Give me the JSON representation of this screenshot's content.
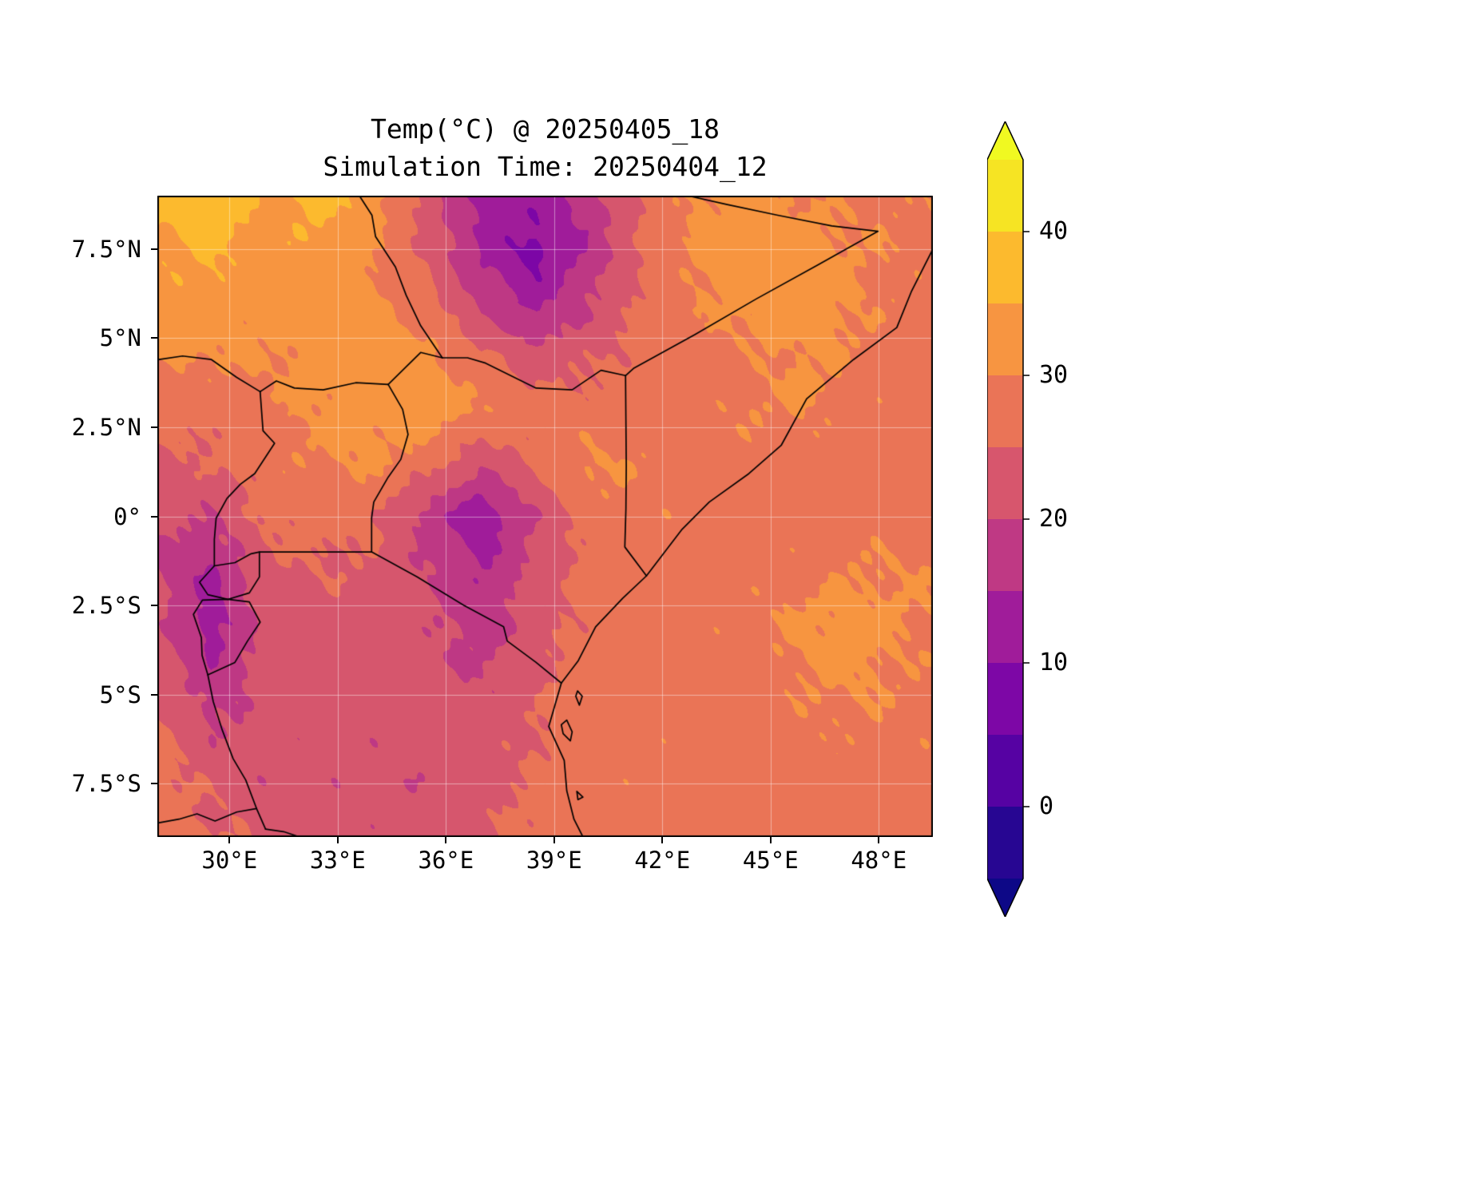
{
  "title": {
    "line1": "Temp(°C) @ 20250405_18",
    "line2": "Simulation Time: 20250404_12"
  },
  "axes": {
    "lon_ticks": [
      {
        "value": 30,
        "label": "30°E"
      },
      {
        "value": 33,
        "label": "33°E"
      },
      {
        "value": 36,
        "label": "36°E"
      },
      {
        "value": 39,
        "label": "39°E"
      },
      {
        "value": 42,
        "label": "42°E"
      },
      {
        "value": 45,
        "label": "45°E"
      },
      {
        "value": 48,
        "label": "48°E"
      }
    ],
    "lat_ticks": [
      {
        "value": 7.5,
        "label": "7.5°N"
      },
      {
        "value": 5,
        "label": "5°N"
      },
      {
        "value": 2.5,
        "label": "2.5°N"
      },
      {
        "value": 0,
        "label": "0°"
      },
      {
        "value": -2.5,
        "label": "2.5°S"
      },
      {
        "value": -5,
        "label": "5°S"
      },
      {
        "value": -7.5,
        "label": "7.5°S"
      }
    ]
  },
  "colorbar": {
    "ticks": [
      {
        "value": 40,
        "label": "40"
      },
      {
        "value": 30,
        "label": "30"
      },
      {
        "value": 20,
        "label": "20"
      },
      {
        "value": 10,
        "label": "10"
      },
      {
        "value": 0,
        "label": "0"
      }
    ],
    "vmin": -5,
    "vmax": 45,
    "band_step": 5,
    "colormap": "plasma",
    "extend": "both",
    "stops": [
      "#0d0887",
      "#41049d",
      "#6a00a8",
      "#8f0da4",
      "#b12a90",
      "#cc4778",
      "#e16462",
      "#f2844b",
      "#fca636",
      "#fcce25",
      "#f0f921"
    ]
  },
  "chart_data": {
    "type": "heatmap",
    "title": "Temp(°C) @ 20250405_18",
    "subtitle": "Simulation Time: 20250404_12",
    "variable": "Temperature",
    "units": "°C",
    "valid_time": "20250405_18",
    "simulation_time": "20250404_12",
    "colormap": "plasma",
    "levels_min": -5,
    "levels_max": 45,
    "level_step": 5,
    "extend": "both",
    "lon_range": [
      28.0,
      49.5
    ],
    "lat_range": [
      -9.0,
      9.0
    ],
    "grid_lon": [
      28.0,
      29.5,
      31.0,
      32.5,
      34.0,
      35.5,
      37.0,
      38.5,
      40.0,
      41.5,
      43.0,
      44.5,
      46.0,
      47.5,
      49.0
    ],
    "grid_lat": [
      9.0,
      7.5,
      6.0,
      4.5,
      3.0,
      1.5,
      0.0,
      -1.5,
      -3.0,
      -4.5,
      -6.0,
      -7.5,
      -9.0
    ],
    "temperature_c": [
      [
        36,
        38,
        34,
        37,
        33,
        22,
        14,
        12,
        18,
        26,
        31,
        32,
        30,
        29,
        29
      ],
      [
        34,
        36,
        33,
        34,
        30,
        24,
        14,
        8,
        16,
        26,
        31,
        33,
        32,
        30,
        29
      ],
      [
        33,
        34,
        32,
        33,
        31,
        27,
        18,
        13,
        20,
        26,
        30,
        32,
        33,
        30,
        28
      ],
      [
        30,
        31,
        30,
        32,
        33,
        31,
        26,
        22,
        24,
        27,
        28,
        29,
        31,
        29,
        28
      ],
      [
        26,
        27,
        29,
        31,
        32,
        33,
        30,
        27,
        27,
        28,
        28,
        30,
        30,
        29,
        28
      ],
      [
        24,
        25,
        28,
        30,
        31,
        27,
        21,
        26,
        31,
        29,
        28,
        28,
        28,
        28,
        28
      ],
      [
        22,
        20,
        26,
        27,
        26,
        18,
        11,
        20,
        28,
        29,
        28,
        28,
        28,
        28,
        28
      ],
      [
        20,
        14,
        24,
        25,
        24,
        20,
        15,
        22,
        27,
        28,
        28,
        28,
        29,
        30,
        30
      ],
      [
        22,
        12,
        22,
        23,
        23,
        21,
        17,
        23,
        27,
        28,
        28,
        29,
        31,
        32,
        30
      ],
      [
        24,
        16,
        22,
        22,
        22,
        22,
        20,
        24,
        28,
        28,
        28,
        28,
        30,
        31,
        29
      ],
      [
        26,
        20,
        22,
        22,
        22,
        22,
        22,
        25,
        28,
        28,
        28,
        28,
        29,
        29,
        29
      ],
      [
        27,
        24,
        21,
        22,
        21,
        21,
        23,
        26,
        28,
        28,
        28,
        28,
        28,
        28,
        28
      ],
      [
        27,
        26,
        24,
        23,
        22,
        22,
        24,
        27,
        28,
        28,
        28,
        28,
        28,
        28,
        28
      ]
    ],
    "borders": {
      "coastline": [
        [
          49.5,
          7.5
        ],
        [
          48.9,
          6.3
        ],
        [
          48.5,
          5.3
        ],
        [
          47.3,
          4.4
        ],
        [
          46.0,
          3.3
        ],
        [
          45.3,
          2.0
        ],
        [
          44.4,
          1.2
        ],
        [
          43.3,
          0.4
        ],
        [
          42.55,
          -0.36
        ],
        [
          41.56,
          -1.67
        ],
        [
          40.9,
          -2.3
        ],
        [
          40.15,
          -3.1
        ],
        [
          39.67,
          -4.05
        ],
        [
          39.2,
          -4.68
        ],
        [
          39.08,
          -5.1
        ],
        [
          38.85,
          -5.9
        ],
        [
          39.28,
          -6.85
        ],
        [
          39.35,
          -7.7
        ],
        [
          39.55,
          -8.5
        ],
        [
          39.8,
          -9.0
        ]
      ],
      "ethiopia_somalia_border": [
        [
          42.7,
          9.0
        ],
        [
          43.8,
          8.75
        ],
        [
          45.2,
          8.45
        ],
        [
          46.7,
          8.15
        ],
        [
          47.98,
          8.0
        ],
        [
          46.3,
          7.05
        ],
        [
          44.6,
          6.1
        ],
        [
          42.9,
          5.1
        ],
        [
          41.2,
          4.15
        ],
        [
          40.98,
          3.95
        ]
      ],
      "kenya_somalia_border": [
        [
          40.98,
          3.95
        ],
        [
          40.99,
          2.7
        ],
        [
          41.0,
          1.4
        ],
        [
          40.99,
          0.2
        ],
        [
          40.96,
          -0.86
        ],
        [
          41.56,
          -1.67
        ]
      ],
      "ethiopia_kenya_border": [
        [
          40.98,
          3.95
        ],
        [
          40.3,
          4.1
        ],
        [
          39.5,
          3.55
        ],
        [
          38.5,
          3.6
        ],
        [
          37.1,
          4.3
        ],
        [
          36.6,
          4.45
        ],
        [
          35.9,
          4.45
        ]
      ],
      "ethiopia_southsudan_border": [
        [
          35.9,
          4.45
        ],
        [
          35.3,
          5.35
        ],
        [
          34.9,
          6.2
        ],
        [
          34.6,
          7.0
        ],
        [
          34.05,
          7.85
        ],
        [
          33.95,
          8.45
        ],
        [
          33.6,
          9.0
        ]
      ],
      "kenya_southsudan_border": [
        [
          35.9,
          4.45
        ],
        [
          35.3,
          4.6
        ],
        [
          34.9,
          4.2
        ],
        [
          34.4,
          3.7
        ]
      ],
      "southsudan_uganda_border": [
        [
          34.4,
          3.7
        ],
        [
          33.5,
          3.75
        ],
        [
          32.6,
          3.55
        ],
        [
          31.8,
          3.6
        ],
        [
          31.3,
          3.8
        ],
        [
          30.85,
          3.5
        ]
      ],
      "southsudan_drc_border": [
        [
          30.85,
          3.5
        ],
        [
          30.2,
          3.9
        ],
        [
          29.5,
          4.4
        ],
        [
          28.7,
          4.5
        ],
        [
          28.05,
          4.4
        ]
      ],
      "uganda_kenya_border": [
        [
          34.4,
          3.7
        ],
        [
          34.8,
          3.0
        ],
        [
          34.95,
          2.3
        ],
        [
          34.75,
          1.6
        ],
        [
          34.4,
          1.1
        ],
        [
          34.0,
          0.4
        ],
        [
          33.94,
          -0.05
        ],
        [
          33.94,
          -1.0
        ]
      ],
      "uganda_drc_border": [
        [
          30.85,
          3.5
        ],
        [
          30.93,
          2.4
        ],
        [
          31.25,
          2.05
        ],
        [
          30.7,
          1.2
        ],
        [
          30.3,
          0.9
        ],
        [
          29.93,
          0.5
        ],
        [
          29.63,
          -0.05
        ],
        [
          29.58,
          -0.65
        ],
        [
          29.58,
          -1.39
        ]
      ],
      "uganda_tanzania_border": [
        [
          30.83,
          -1.0
        ],
        [
          31.6,
          -1.0
        ],
        [
          32.4,
          -1.0
        ],
        [
          33.2,
          -1.0
        ],
        [
          33.94,
          -1.0
        ]
      ],
      "kenya_tanzania_border": [
        [
          33.94,
          -1.0
        ],
        [
          35.2,
          -1.7
        ],
        [
          36.5,
          -2.5
        ],
        [
          37.6,
          -3.1
        ],
        [
          37.7,
          -3.5
        ],
        [
          38.5,
          -4.1
        ],
        [
          39.2,
          -4.68
        ]
      ],
      "rwanda_border": [
        [
          29.58,
          -1.39
        ],
        [
          30.15,
          -1.3
        ],
        [
          30.6,
          -1.05
        ],
        [
          30.83,
          -1.0
        ],
        [
          30.83,
          -1.7
        ],
        [
          30.55,
          -2.15
        ],
        [
          29.95,
          -2.33
        ],
        [
          29.4,
          -2.2
        ],
        [
          29.17,
          -1.85
        ],
        [
          29.58,
          -1.39
        ]
      ],
      "burundi_border": [
        [
          29.25,
          -2.35
        ],
        [
          29.95,
          -2.33
        ],
        [
          30.55,
          -2.4
        ],
        [
          30.85,
          -2.97
        ],
        [
          30.5,
          -3.5
        ],
        [
          30.15,
          -4.1
        ],
        [
          29.4,
          -4.45
        ],
        [
          29.24,
          -3.9
        ],
        [
          29.22,
          -3.4
        ],
        [
          29.0,
          -2.75
        ],
        [
          29.25,
          -2.35
        ]
      ],
      "drc_tanzania_border": [
        [
          29.4,
          -4.45
        ],
        [
          29.55,
          -5.2
        ],
        [
          29.8,
          -6.0
        ],
        [
          30.1,
          -6.8
        ],
        [
          30.45,
          -7.4
        ],
        [
          30.75,
          -8.2
        ],
        [
          31.0,
          -8.78
        ]
      ],
      "tanzania_zambia_border": [
        [
          31.0,
          -8.78
        ],
        [
          31.5,
          -8.85
        ],
        [
          31.95,
          -9.0
        ]
      ],
      "drc_zambia_border": [
        [
          28.05,
          -8.6
        ],
        [
          28.6,
          -8.5
        ],
        [
          29.1,
          -8.35
        ],
        [
          29.6,
          -8.55
        ],
        [
          30.2,
          -8.3
        ],
        [
          30.75,
          -8.2
        ]
      ],
      "zanzibar_island": [
        [
          39.2,
          -5.85
        ],
        [
          39.35,
          -5.72
        ],
        [
          39.5,
          -6.05
        ],
        [
          39.45,
          -6.3
        ],
        [
          39.25,
          -6.1
        ],
        [
          39.2,
          -5.85
        ]
      ],
      "pemba_island": [
        [
          39.65,
          -4.9
        ],
        [
          39.78,
          -5.05
        ],
        [
          39.7,
          -5.3
        ],
        [
          39.6,
          -5.05
        ],
        [
          39.65,
          -4.9
        ]
      ],
      "mafia_island": [
        [
          39.63,
          -7.72
        ],
        [
          39.8,
          -7.88
        ],
        [
          39.66,
          -7.95
        ],
        [
          39.63,
          -7.72
        ]
      ]
    }
  }
}
